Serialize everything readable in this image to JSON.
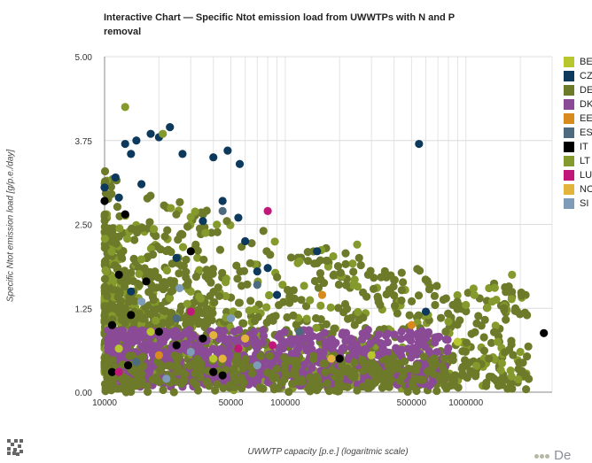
{
  "page": {
    "title": "Interactive Chart — Specific Ntot emission load from UWWTPs with N and P removal",
    "logo_text": "De"
  },
  "colors": {
    "BE": "#b7c72d",
    "CZ": "#0d3a5c",
    "DE": "#6c7a2a",
    "DK": "#8a4a96",
    "EE": "#d98a1d",
    "ES": "#4d6a7e",
    "IT": "#000000",
    "LT": "#859a2c",
    "LU": "#c0187a",
    "NO": "#e2b43b",
    "SI": "#7e9cb8"
  },
  "chart_data": {
    "type": "scatter",
    "title": "Interactive Chart — Specific Ntot emission load from UWWTPs with N and P removal",
    "xlabel": "UWWTP capacity [p.e.] (logaritmic scale)",
    "ylabel": "Specific Ntot emission load [g/p.e./day]",
    "x_scale": "log",
    "xlim": [
      10000,
      3000000
    ],
    "ylim": [
      0,
      5
    ],
    "x_ticks": [
      "10000",
      "50000",
      "100000",
      "500000",
      "1000000"
    ],
    "y_ticks": [
      "0.00",
      "1.25",
      "2.50",
      "3.75",
      "5.00"
    ],
    "legend_position": "right",
    "series": [
      {
        "name": "BE",
        "color": "#b7c72d",
        "points": [
          [
            12000,
            0.65
          ],
          [
            18000,
            0.9
          ],
          [
            900000,
            0.75
          ],
          [
            300000,
            0.55
          ],
          [
            40000,
            0.5
          ]
        ]
      },
      {
        "name": "CZ",
        "color": "#0d3a5c",
        "points": [
          [
            10000,
            3.05
          ],
          [
            11500,
            3.2
          ],
          [
            13000,
            3.7
          ],
          [
            14000,
            3.55
          ],
          [
            15000,
            3.75
          ],
          [
            16000,
            3.1
          ],
          [
            18000,
            3.85
          ],
          [
            23000,
            3.95
          ],
          [
            27000,
            3.55
          ],
          [
            40000,
            3.5
          ],
          [
            48000,
            3.6
          ],
          [
            56000,
            3.4
          ],
          [
            550000,
            3.7
          ],
          [
            20000,
            3.8
          ],
          [
            12000,
            2.9
          ],
          [
            55000,
            2.6
          ],
          [
            70000,
            1.8
          ],
          [
            80000,
            1.85
          ],
          [
            150000,
            2.1
          ],
          [
            35000,
            2.55
          ],
          [
            25000,
            2.0
          ],
          [
            14000,
            1.5
          ],
          [
            600000,
            1.2
          ],
          [
            90000,
            1.45
          ],
          [
            45000,
            2.85
          ],
          [
            60000,
            2.25
          ]
        ]
      },
      {
        "name": "DE",
        "color": "#6c7a2a",
        "points": []
      },
      {
        "name": "DK",
        "color": "#8a4a96",
        "points": []
      },
      {
        "name": "EE",
        "color": "#d98a1d",
        "points": [
          [
            160000,
            1.45
          ],
          [
            500000,
            1.0
          ],
          [
            20000,
            0.55
          ]
        ]
      },
      {
        "name": "ES",
        "color": "#4d6a7e",
        "points": [
          [
            45000,
            2.7
          ],
          [
            70000,
            1.6
          ],
          [
            25000,
            1.1
          ],
          [
            120000,
            0.9
          ],
          [
            15000,
            0.45
          ]
        ]
      },
      {
        "name": "IT",
        "color": "#000000",
        "points": [
          [
            10000,
            2.85
          ],
          [
            13000,
            2.65
          ],
          [
            2700000,
            0.88
          ],
          [
            12000,
            1.75
          ],
          [
            17000,
            1.65
          ],
          [
            11000,
            1.0
          ],
          [
            14000,
            1.15
          ],
          [
            30000,
            2.1
          ],
          [
            25000,
            0.7
          ],
          [
            40000,
            0.3
          ],
          [
            13500,
            0.4
          ],
          [
            20000,
            0.9
          ],
          [
            11000,
            0.3
          ],
          [
            45000,
            0.25
          ],
          [
            200000,
            0.5
          ],
          [
            35000,
            0.8
          ]
        ]
      },
      {
        "name": "LT",
        "color": "#859a2c",
        "points": [
          [
            13000,
            4.25
          ],
          [
            21000,
            3.85
          ],
          [
            1800000,
            1.75
          ],
          [
            1400000,
            1.35
          ],
          [
            1000000,
            1.3
          ],
          [
            2000000,
            0.6
          ],
          [
            1500000,
            0.75
          ],
          [
            800000,
            1.05
          ],
          [
            250000,
            2.2
          ],
          [
            120000,
            1.95
          ]
        ]
      },
      {
        "name": "LU",
        "color": "#c0187a",
        "points": [
          [
            80000,
            2.7
          ],
          [
            30000,
            1.2
          ],
          [
            55000,
            0.65
          ],
          [
            85000,
            0.7
          ],
          [
            12000,
            0.3
          ]
        ]
      },
      {
        "name": "NO",
        "color": "#e2b43b",
        "points": [
          [
            40000,
            0.85
          ],
          [
            60000,
            0.8
          ],
          [
            45000,
            0.5
          ],
          [
            180000,
            0.5
          ]
        ]
      },
      {
        "name": "SI",
        "color": "#7e9cb8",
        "points": [
          [
            16000,
            1.35
          ],
          [
            30000,
            0.6
          ],
          [
            50000,
            1.1
          ],
          [
            70000,
            0.4
          ],
          [
            22000,
            0.2
          ],
          [
            26000,
            1.55
          ]
        ]
      }
    ]
  }
}
